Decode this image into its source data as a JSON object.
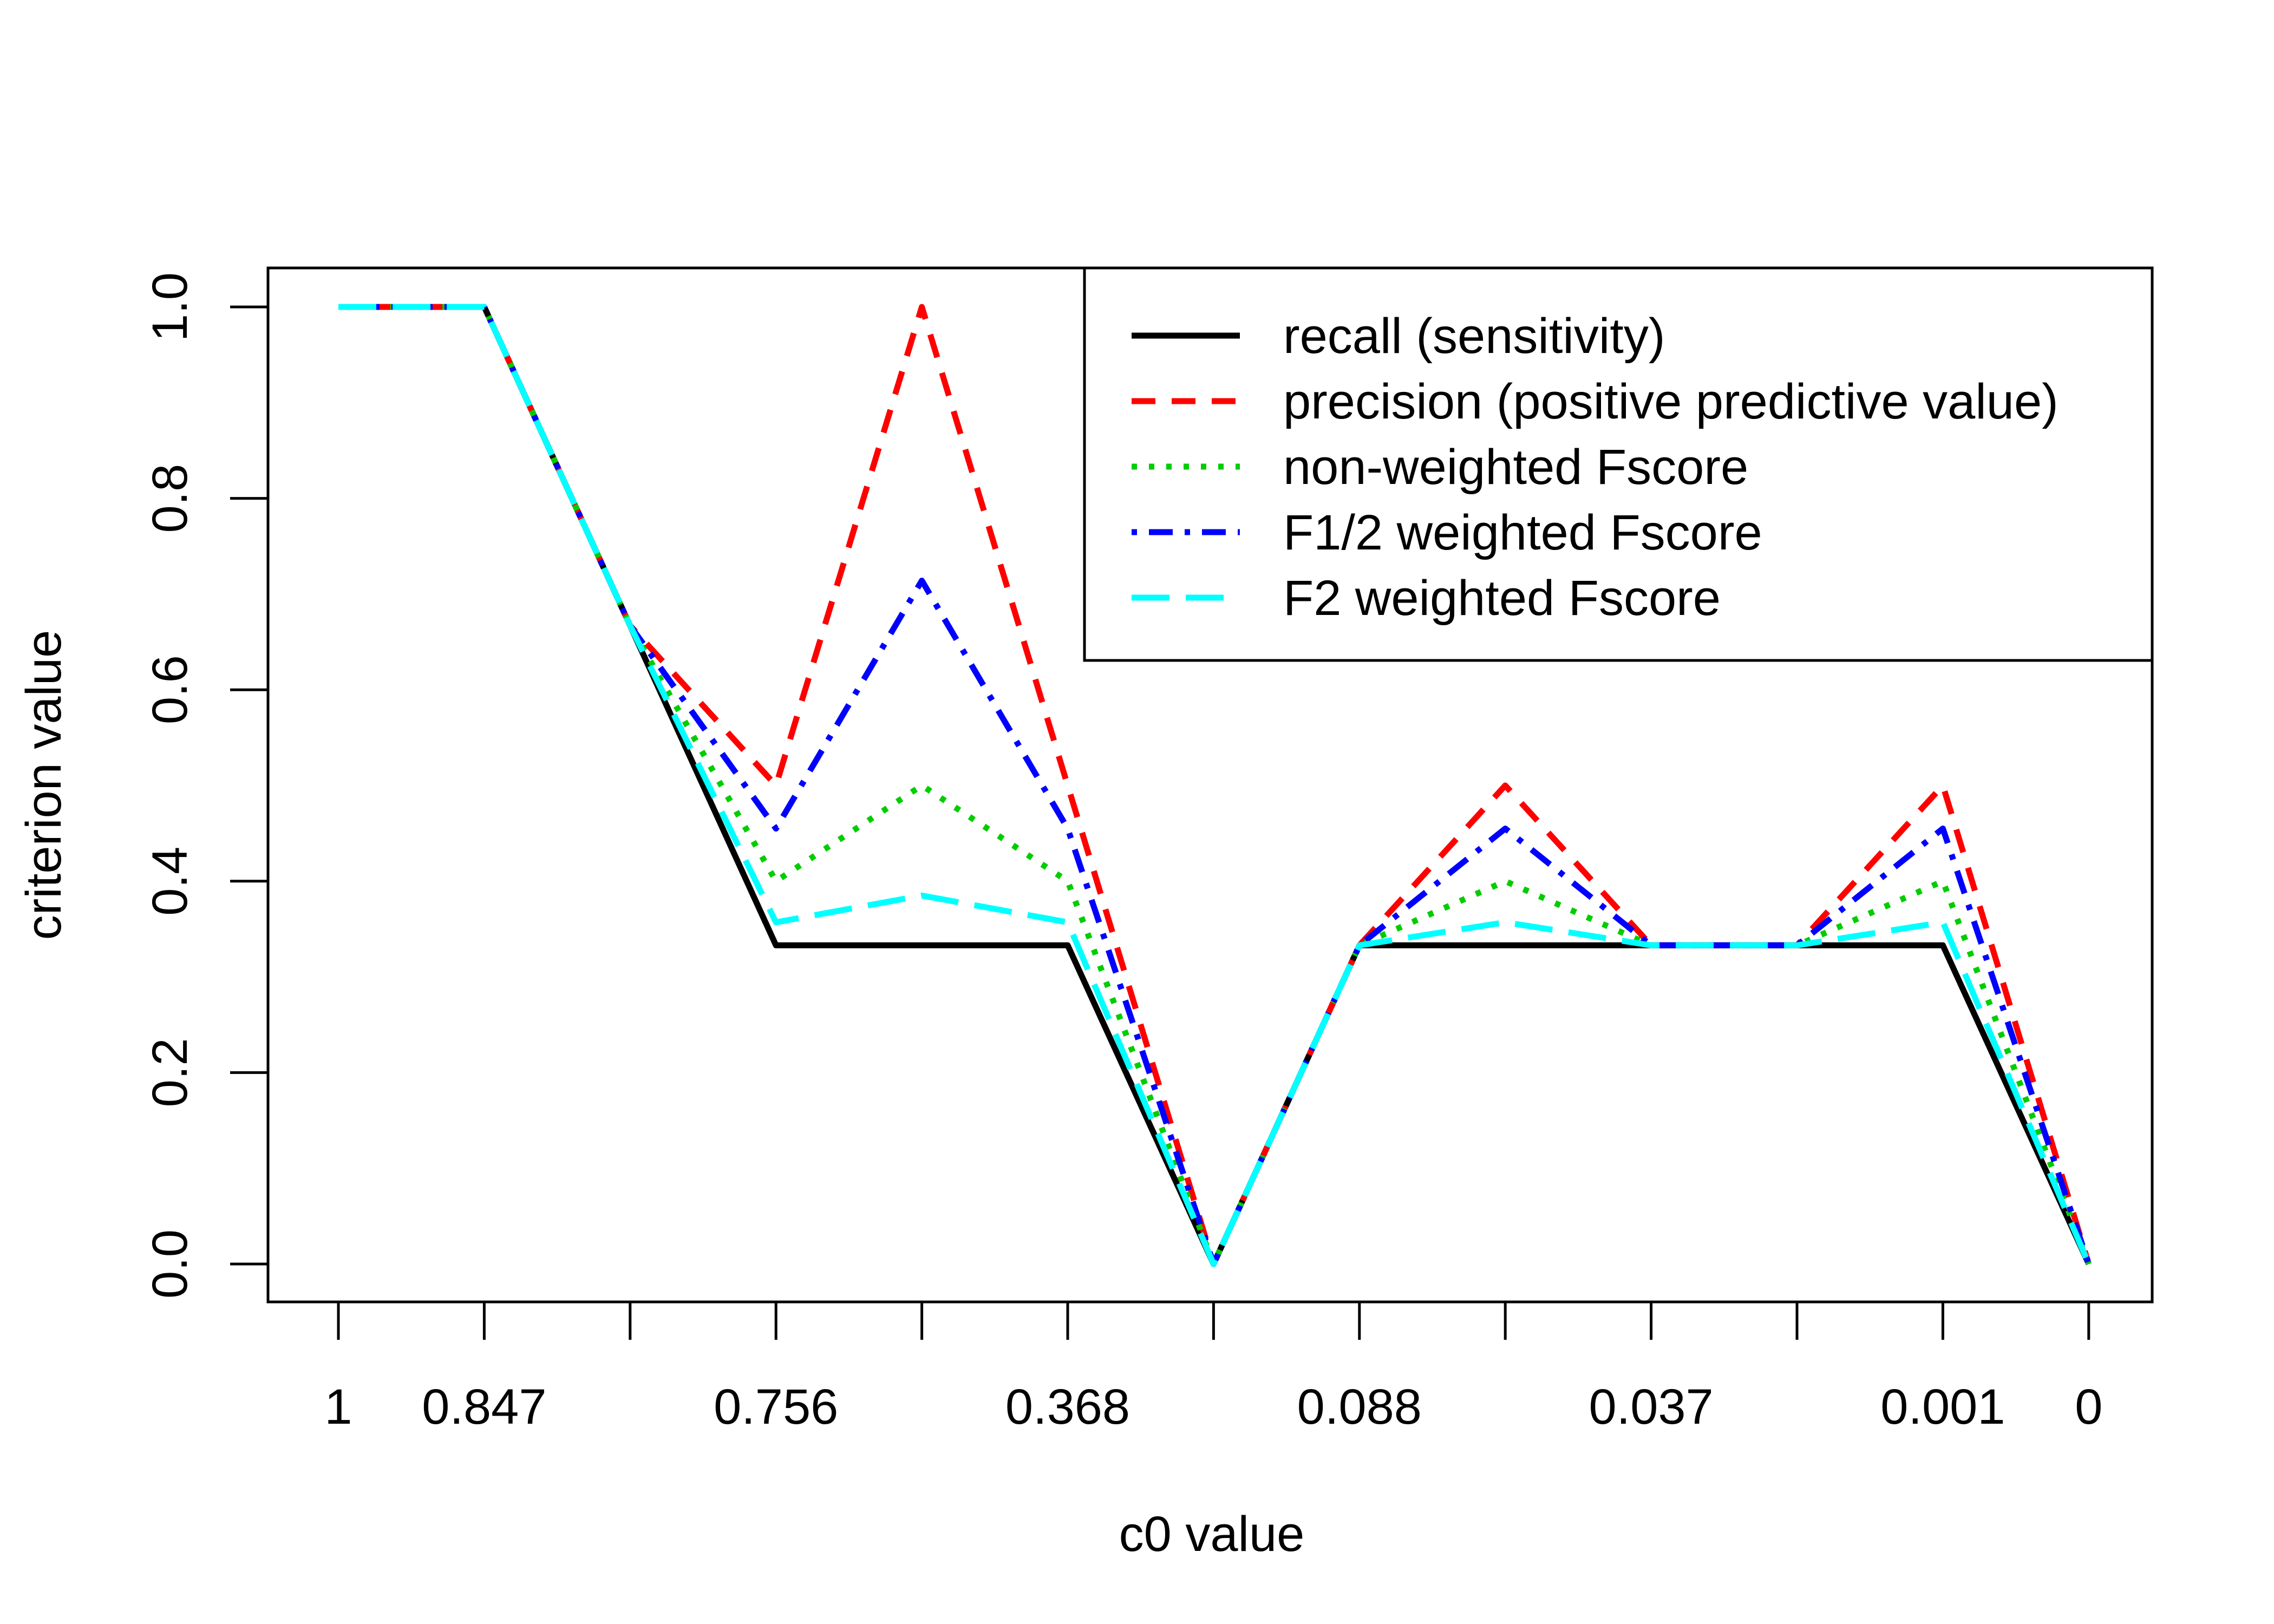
{
  "chart_data": {
    "type": "line",
    "title": "",
    "xlabel": "c0 value",
    "ylabel": "criterion value",
    "x_positions": [
      1,
      2,
      3,
      4,
      5,
      6,
      7,
      8,
      9,
      10,
      11,
      12,
      13
    ],
    "x_tick_labels": [
      "1",
      "0.847",
      "",
      "0.756",
      "",
      "0.368",
      "",
      "0.088",
      "",
      "0.037",
      "",
      "0.001",
      "0"
    ],
    "y_ticks": [
      "0.0",
      "0.2",
      "0.4",
      "0.6",
      "0.8",
      "1.0"
    ],
    "y_tick_values": [
      0,
      0.2,
      0.4,
      0.6,
      0.8,
      1.0
    ],
    "ylim": [
      0,
      1
    ],
    "legend_position": "top-right",
    "series": [
      {
        "name": "recall (sensitivity)",
        "color": "#000000",
        "dash": "solid",
        "values": [
          1,
          1,
          0.667,
          0.333,
          0.333,
          0.333,
          0,
          0.333,
          0.333,
          0.333,
          0.333,
          0.333,
          0
        ]
      },
      {
        "name": "precision (positive predictive value)",
        "color": "#ff0000",
        "dash": "dashed",
        "values": [
          1,
          1,
          0.667,
          0.5,
          1.0,
          0.5,
          0,
          0.333,
          0.5,
          0.333,
          0.333,
          0.5,
          0
        ]
      },
      {
        "name": "non-weighted Fscore",
        "color": "#00cd00",
        "dash": "dotted",
        "values": [
          1,
          1,
          0.667,
          0.4,
          0.5,
          0.4,
          0,
          0.333,
          0.4,
          0.333,
          0.333,
          0.4,
          0
        ]
      },
      {
        "name": "F1/2 weighted Fscore",
        "color": "#0000ff",
        "dash": "dotdash",
        "values": [
          1,
          1,
          0.667,
          0.455,
          0.714,
          0.455,
          0,
          0.333,
          0.455,
          0.333,
          0.333,
          0.455,
          0
        ]
      },
      {
        "name": "F2 weighted Fscore",
        "color": "#00ffff",
        "dash": "longdash",
        "values": [
          1,
          1,
          0.667,
          0.357,
          0.385,
          0.357,
          0,
          0.333,
          0.357,
          0.333,
          0.333,
          0.357,
          0
        ]
      }
    ]
  }
}
